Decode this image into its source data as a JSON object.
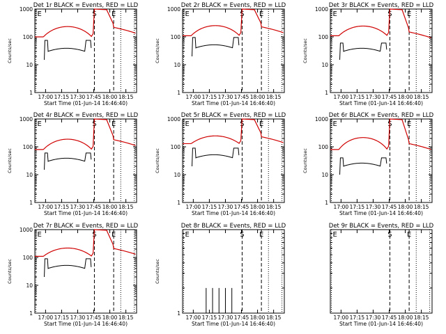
{
  "chart_data": [
    {
      "title": "Det 1r BLACK = Events, RED = LLD",
      "type": "line",
      "ylabel": "Counts/sec",
      "xlabel": "Start Time (01-Jun-14 16:46:40)",
      "x_ticks": [
        "17:00",
        "17:15",
        "17:30",
        "17:45",
        "18:00",
        "18:15"
      ],
      "y_ticks": [
        "1",
        "10",
        "100",
        "1000"
      ],
      "y_scale": "log",
      "ylim": [
        1,
        1000
      ],
      "markers": [
        "E",
        "S",
        "E"
      ],
      "series": [
        {
          "name": "RED",
          "color": "#d00000",
          "shape": "a",
          "pre": 100,
          "mid_peak": 250,
          "post_peak": 1000,
          "tail": 220
        },
        {
          "name": "BLACK",
          "color": "#000000",
          "shape": "box",
          "low": 30,
          "high": 70,
          "gap_low": 40,
          "gap_high": 75
        }
      ]
    },
    {
      "title": "Det 2r BLACK = Events, RED = LLD",
      "type": "line",
      "ylabel": "Counts/sec",
      "xlabel": "Start Time (01-Jun-14 16:46:40)",
      "x_ticks": [
        "17:00",
        "17:15",
        "17:30",
        "17:45",
        "18:00",
        "18:15"
      ],
      "y_ticks": [
        "1",
        "10",
        "100",
        "1000"
      ],
      "y_scale": "log",
      "ylim": [
        1,
        1000
      ],
      "markers": [
        "E",
        "S",
        "E"
      ],
      "series": [
        {
          "name": "RED",
          "color": "#d00000",
          "shape": "a",
          "pre": 110,
          "mid_peak": 270,
          "post_peak": 1000,
          "tail": 230
        },
        {
          "name": "BLACK",
          "color": "#000000",
          "shape": "box",
          "low": 40,
          "high": 90,
          "gap_low": 50,
          "gap_high": 95
        }
      ]
    },
    {
      "title": "Det 3r BLACK = Events, RED = LLD",
      "type": "line",
      "ylabel": "Counts/sec",
      "xlabel": "Start Time (01-Jun-14 16:46:40)",
      "x_ticks": [
        "17:00",
        "17:15",
        "17:30",
        "17:45",
        "18:00",
        "18:15"
      ],
      "y_ticks": [
        "1",
        "10",
        "100",
        "1000"
      ],
      "y_scale": "log",
      "ylim": [
        1,
        1000
      ],
      "markers": [
        "E",
        "S",
        "E"
      ],
      "series": [
        {
          "name": "RED",
          "color": "#d00000",
          "shape": "a",
          "pre": 110,
          "mid_peak": 260,
          "post_peak": 1000,
          "tail": 150
        },
        {
          "name": "BLACK",
          "color": "#000000",
          "shape": "box",
          "low": 30,
          "high": 55,
          "gap_low": 35,
          "gap_high": 60
        }
      ]
    },
    {
      "title": "Det 4r BLACK = Events, RED = LLD",
      "type": "line",
      "ylabel": "Counts/sec",
      "xlabel": "Start Time (01-Jun-14 16:46:40)",
      "x_ticks": [
        "17:00",
        "17:15",
        "17:30",
        "17:45",
        "18:00",
        "18:15"
      ],
      "y_ticks": [
        "1",
        "10",
        "100",
        "1000"
      ],
      "y_scale": "log",
      "ylim": [
        1,
        1000
      ],
      "markers": [
        "E",
        "S",
        "E"
      ],
      "series": [
        {
          "name": "RED",
          "color": "#d00000",
          "shape": "a",
          "pre": 80,
          "mid_peak": 200,
          "post_peak": 1000,
          "tail": 180
        },
        {
          "name": "BLACK",
          "color": "#000000",
          "shape": "box",
          "low": 30,
          "high": 60,
          "gap_low": 35,
          "gap_high": 60
        }
      ]
    },
    {
      "title": "Det 5r BLACK = Events, RED = LLD",
      "type": "line",
      "ylabel": "Counts/sec",
      "xlabel": "Start Time (01-Jun-14 16:46:40)",
      "x_ticks": [
        "17:00",
        "17:15",
        "17:30",
        "17:45",
        "18:00",
        "18:15"
      ],
      "y_ticks": [
        "1",
        "10",
        "100",
        "1000"
      ],
      "y_scale": "log",
      "ylim": [
        1,
        1000
      ],
      "markers": [
        "E",
        "S",
        "E"
      ],
      "series": [
        {
          "name": "RED",
          "color": "#d00000",
          "shape": "a",
          "pre": 130,
          "mid_peak": 260,
          "post_peak": 1000,
          "tail": 230
        },
        {
          "name": "BLACK",
          "color": "#000000",
          "shape": "box",
          "low": 40,
          "high": 90,
          "gap_low": 50,
          "gap_high": 90
        }
      ]
    },
    {
      "title": "Det 6r BLACK = Events, RED = LLD",
      "type": "line",
      "ylabel": "Counts/sec",
      "xlabel": "Start Time (01-Jun-14 16:46:40)",
      "x_ticks": [
        "17:00",
        "17:15",
        "17:30",
        "17:45",
        "18:00",
        "18:15"
      ],
      "y_ticks": [
        "1",
        "10",
        "100",
        "1000"
      ],
      "y_scale": "log",
      "ylim": [
        1,
        1000
      ],
      "markers": [
        "E",
        "S",
        "E"
      ],
      "series": [
        {
          "name": "RED",
          "color": "#d00000",
          "shape": "a",
          "pre": 80,
          "mid_peak": 230,
          "post_peak": 1000,
          "tail": 130
        },
        {
          "name": "BLACK",
          "color": "#000000",
          "shape": "box",
          "low": 20,
          "high": 40,
          "gap_low": 25,
          "gap_high": 40
        }
      ]
    },
    {
      "title": "Det 7r BLACK = Events, RED = LLD",
      "type": "line",
      "ylabel": "Counts/sec",
      "xlabel": "Start Time (01-Jun-14 16:46:40)",
      "x_ticks": [
        "17:00",
        "17:15",
        "17:30",
        "17:45",
        "18:00",
        "18:15"
      ],
      "y_ticks": [
        "1",
        "10",
        "100",
        "1000"
      ],
      "y_scale": "log",
      "ylim": [
        1,
        1000
      ],
      "markers": [
        "E",
        "S",
        "E"
      ],
      "series": [
        {
          "name": "RED",
          "color": "#d00000",
          "shape": "a",
          "pre": 110,
          "mid_peak": 230,
          "post_peak": 1000,
          "tail": 210
        },
        {
          "name": "BLACK",
          "color": "#000000",
          "shape": "box",
          "low": 40,
          "high": 85,
          "gap_low": 45,
          "gap_high": 90
        }
      ]
    },
    {
      "title": "Det 8r BLACK = Events, RED = LLD",
      "type": "line",
      "ylabel": "Counts/sec",
      "xlabel": "Start Time (01-Jun-14 16:46:40)",
      "x_ticks": [
        "17:00",
        "17:15",
        "17:30",
        "17:45",
        "18:00",
        "18:15"
      ],
      "y_ticks": [
        "1"
      ],
      "y_scale": "log",
      "ylim": [
        1,
        10
      ],
      "markers": [
        "E",
        "S",
        "E"
      ],
      "series": [
        {
          "name": "BLACK",
          "color": "#000000",
          "shape": "spikes",
          "spikes": [
            17.2,
            17.3,
            17.4,
            17.5,
            17.6
          ],
          "height": 2
        }
      ]
    },
    {
      "title": "Det 9r BLACK = Events, RED = LLD",
      "type": "line",
      "ylabel": "",
      "xlabel": "Start Time (01-Jun-14 16:46:40)",
      "x_ticks": [
        "17:00",
        "17:15",
        "17:30",
        "17:45",
        "18:00",
        "18:15"
      ],
      "y_ticks": [],
      "y_scale": "log",
      "ylim": [
        1,
        10
      ],
      "markers": [
        "E",
        "S",
        "E"
      ],
      "series": []
    }
  ]
}
